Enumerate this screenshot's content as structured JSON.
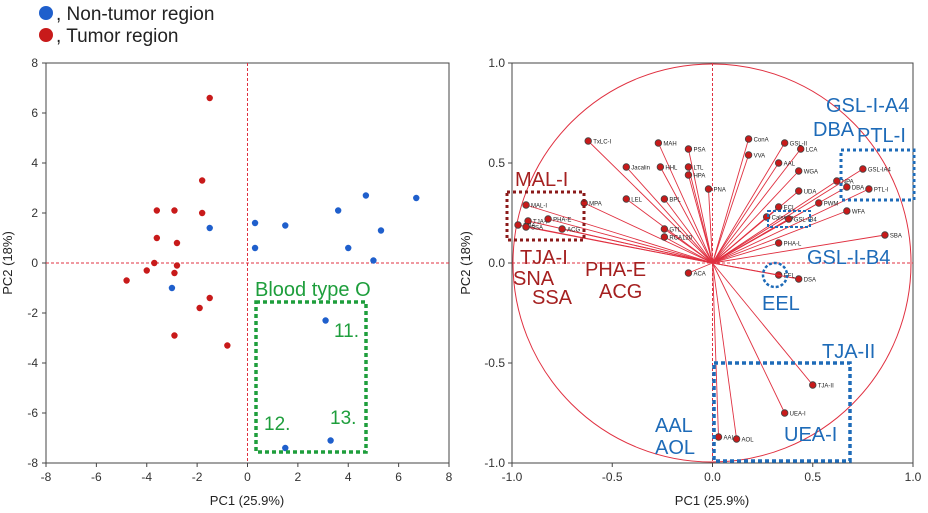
{
  "legend": {
    "items": [
      {
        "label": ", Non-tumor region",
        "color": "#1f5fcc"
      },
      {
        "label": ", Tumor region",
        "color": "#c81a1a"
      }
    ]
  },
  "colors": {
    "nontumor": "#1f5fcc",
    "tumor": "#c81a1a",
    "green": "#1e9e3c",
    "blue_label": "#1e6bb8",
    "red_label": "#a52020",
    "arrow": "#e03040"
  },
  "chart_data": [
    {
      "type": "scatter",
      "title": "",
      "xlabel": "PC1 (25.9%)",
      "ylabel": "PC2 (18%)",
      "xlim": [
        -8,
        8
      ],
      "ylim": [
        -8,
        8
      ],
      "xticks": [
        -8,
        -6,
        -4,
        -2,
        0,
        2,
        4,
        6,
        8
      ],
      "yticks": [
        -8,
        -6,
        -4,
        -2,
        0,
        2,
        4,
        6,
        8
      ],
      "series": [
        {
          "name": "Tumor region",
          "color": "#c81a1a",
          "points": [
            [
              -1.5,
              6.6
            ],
            [
              -1.8,
              3.3
            ],
            [
              -3.6,
              2.1
            ],
            [
              -2.9,
              2.1
            ],
            [
              -1.8,
              2.0
            ],
            [
              -3.6,
              1.0
            ],
            [
              -2.8,
              0.8
            ],
            [
              -3.7,
              0.0
            ],
            [
              -2.8,
              -0.1
            ],
            [
              -4.0,
              -0.3
            ],
            [
              -2.9,
              -0.4
            ],
            [
              -4.8,
              -0.7
            ],
            [
              -1.5,
              -1.4
            ],
            [
              -1.9,
              -1.8
            ],
            [
              -2.9,
              -2.9
            ],
            [
              -0.8,
              -3.3
            ]
          ]
        },
        {
          "name": "Non-tumor region",
          "color": "#1f5fcc",
          "points": [
            [
              -1.5,
              1.4
            ],
            [
              -3.0,
              -1.0
            ],
            [
              0.3,
              1.6
            ],
            [
              1.5,
              1.5
            ],
            [
              0.3,
              0.6
            ],
            [
              3.6,
              2.1
            ],
            [
              4.7,
              2.7
            ],
            [
              6.7,
              2.6
            ],
            [
              5.3,
              1.3
            ],
            [
              4.0,
              0.6
            ],
            [
              5.0,
              0.1
            ],
            [
              3.1,
              -2.3
            ],
            [
              3.3,
              -7.1
            ],
            [
              1.5,
              -7.4
            ]
          ]
        }
      ],
      "annotations": [
        {
          "text": "Blood type O"
        },
        {
          "text": "11."
        },
        {
          "text": "12."
        },
        {
          "text": "13."
        }
      ]
    },
    {
      "type": "biplot",
      "title": "",
      "xlabel": "PC1 (25.9%)",
      "ylabel": "PC2 (18%)",
      "xlim": [
        -1.0,
        1.0
      ],
      "ylim": [
        -1.0,
        1.0
      ],
      "xticks": [
        "-1.0",
        "-0.5",
        "0.0",
        "0.5",
        "1.0"
      ],
      "yticks": [
        "1.0",
        "0.5",
        "0.0",
        "-0.5",
        "-1.0"
      ],
      "loadings": [
        {
          "name": "TxLC-I",
          "x": -0.62,
          "y": 0.61
        },
        {
          "name": "MAH",
          "x": -0.27,
          "y": 0.6
        },
        {
          "name": "PSA",
          "x": -0.12,
          "y": 0.57
        },
        {
          "name": "Jacalin",
          "x": -0.43,
          "y": 0.48
        },
        {
          "name": "HHL",
          "x": -0.26,
          "y": 0.48
        },
        {
          "name": "LTL",
          "x": -0.12,
          "y": 0.48
        },
        {
          "name": "HPA",
          "x": -0.12,
          "y": 0.44
        },
        {
          "name": "PNA",
          "x": -0.02,
          "y": 0.37
        },
        {
          "name": "MPA",
          "x": -0.64,
          "y": 0.3
        },
        {
          "name": "LEL",
          "x": -0.43,
          "y": 0.32
        },
        {
          "name": "BPL",
          "x": -0.24,
          "y": 0.32
        },
        {
          "name": "GTL",
          "x": -0.24,
          "y": 0.17
        },
        {
          "name": "RCA120",
          "x": -0.24,
          "y": 0.13
        },
        {
          "name": "ACA",
          "x": -0.12,
          "y": -0.05
        },
        {
          "name": "MAL-I",
          "x": -0.93,
          "y": 0.29
        },
        {
          "name": "TJA-I",
          "x": -0.92,
          "y": 0.21
        },
        {
          "name": "PHA-E",
          "x": -0.82,
          "y": 0.22
        },
        {
          "name": "SNA",
          "x": -0.97,
          "y": 0.19
        },
        {
          "name": "SSA",
          "x": -0.93,
          "y": 0.18
        },
        {
          "name": "ACG",
          "x": -0.75,
          "y": 0.17
        },
        {
          "name": "ConA",
          "x": 0.18,
          "y": 0.62
        },
        {
          "name": "GSL-II",
          "x": 0.36,
          "y": 0.6
        },
        {
          "name": "LCA",
          "x": 0.44,
          "y": 0.57
        },
        {
          "name": "VVA",
          "x": 0.18,
          "y": 0.54
        },
        {
          "name": "AAL",
          "x": 0.33,
          "y": 0.5
        },
        {
          "name": "WGA",
          "x": 0.43,
          "y": 0.46
        },
        {
          "name": "NPA",
          "x": 0.62,
          "y": 0.41
        },
        {
          "name": "DBA",
          "x": 0.67,
          "y": 0.38
        },
        {
          "name": "GSL-IA4",
          "x": 0.75,
          "y": 0.47
        },
        {
          "name": "PTL-I",
          "x": 0.78,
          "y": 0.37
        },
        {
          "name": "UDA",
          "x": 0.43,
          "y": 0.36
        },
        {
          "name": "PWM",
          "x": 0.53,
          "y": 0.3
        },
        {
          "name": "WFA",
          "x": 0.67,
          "y": 0.26
        },
        {
          "name": "ECL",
          "x": 0.33,
          "y": 0.28
        },
        {
          "name": "Calsepa",
          "x": 0.27,
          "y": 0.23
        },
        {
          "name": "GSL-IB4",
          "x": 0.38,
          "y": 0.22
        },
        {
          "name": "PHA-L",
          "x": 0.33,
          "y": 0.1
        },
        {
          "name": "SBA",
          "x": 0.86,
          "y": 0.14
        },
        {
          "name": "EEL",
          "x": 0.33,
          "y": -0.06
        },
        {
          "name": "DSA",
          "x": 0.43,
          "y": -0.08
        },
        {
          "name": "TJA-II",
          "x": 0.5,
          "y": -0.61
        },
        {
          "name": "UEA-I",
          "x": 0.36,
          "y": -0.75
        },
        {
          "name": "AAL",
          "x": 0.03,
          "y": -0.87
        },
        {
          "name": "AOL",
          "x": 0.12,
          "y": -0.88
        }
      ],
      "annotations_red": [
        {
          "text": "MAL-I"
        },
        {
          "text": "TJA-I"
        },
        {
          "text": "SNA"
        },
        {
          "text": "SSA"
        },
        {
          "text": "PHA-E"
        },
        {
          "text": "ACG"
        }
      ],
      "annotations_blue": [
        {
          "text": "GSL-I-A4"
        },
        {
          "text": "DBA"
        },
        {
          "text": "PTL-I"
        },
        {
          "text": "GSL-I-B4"
        },
        {
          "text": "EEL"
        },
        {
          "text": "TJA-II"
        },
        {
          "text": "UEA-I"
        },
        {
          "text": "AAL"
        },
        {
          "text": "AOL"
        }
      ]
    }
  ]
}
